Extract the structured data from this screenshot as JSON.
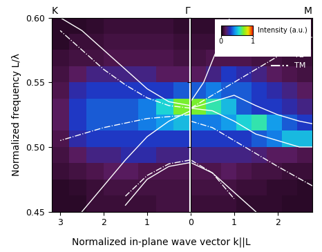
{
  "chart_data": [
    {
      "type": "heatmap",
      "x_label": "Normalized in-plane wave vector k||L",
      "y_label": "Normalized frequency L/λ",
      "top_labels": [
        {
          "value": 3.2,
          "label": "K"
        },
        {
          "value": 0,
          "label": "Γ"
        }
      ],
      "xlim": [
        3.2,
        0
      ],
      "xticks": [
        3,
        2,
        1,
        0
      ],
      "ylim": [
        0.45,
        0.6
      ],
      "yticks": [
        {
          "value": 0.45,
          "label": "0.45"
        },
        {
          "value": 0.5,
          "label": "0.50"
        },
        {
          "value": 0.55,
          "label": "0.55"
        },
        {
          "value": 0.6,
          "label": "0.60"
        }
      ],
      "x_edges": [
        3.2,
        2.8,
        2.4,
        2.0,
        1.6,
        1.2,
        0.8,
        0.4,
        0
      ],
      "y_edges": [
        0.45,
        0.4625,
        0.475,
        0.4875,
        0.5,
        0.5125,
        0.525,
        0.5375,
        0.55,
        0.5625,
        0.575,
        0.5875,
        0.6
      ],
      "cells": [
        [
          0.05,
          0.05,
          0.08,
          0.08,
          0.08,
          0.08,
          0.1,
          0.1
        ],
        [
          0.05,
          0.06,
          0.08,
          0.1,
          0.1,
          0.1,
          0.1,
          0.1
        ],
        [
          0.08,
          0.1,
          0.12,
          0.15,
          0.15,
          0.12,
          0.12,
          0.12
        ],
        [
          0.1,
          0.15,
          0.2,
          0.2,
          0.25,
          0.25,
          0.2,
          0.2
        ],
        [
          0.12,
          0.25,
          0.3,
          0.3,
          0.3,
          0.3,
          0.3,
          0.3
        ],
        [
          0.15,
          0.3,
          0.35,
          0.35,
          0.35,
          0.4,
          0.45,
          0.5
        ],
        [
          0.15,
          0.3,
          0.35,
          0.35,
          0.35,
          0.4,
          0.55,
          0.7
        ],
        [
          0.12,
          0.25,
          0.3,
          0.3,
          0.3,
          0.3,
          0.3,
          0.35
        ],
        [
          0.1,
          0.15,
          0.2,
          0.2,
          0.2,
          0.2,
          0.15,
          0.15
        ],
        [
          0.08,
          0.1,
          0.1,
          0.12,
          0.12,
          0.12,
          0.12,
          0.1
        ],
        [
          0.05,
          0.08,
          0.08,
          0.1,
          0.1,
          0.1,
          0.1,
          0.08
        ],
        [
          0.05,
          0.05,
          0.06,
          0.08,
          0.08,
          0.08,
          0.08,
          0.06
        ]
      ],
      "series": [
        {
          "name": "TE",
          "color": "#ffffff",
          "line_style": "solid",
          "x": [
            0,
            0.5,
            1,
            1.5,
            2,
            2.5,
            3
          ],
          "values": [
            0.532,
            0.535,
            0.545,
            0.56,
            0.575,
            0.59,
            0.6
          ]
        },
        {
          "name": "TE",
          "color": "#ffffff",
          "line_style": "solid",
          "x": [
            0,
            0.5,
            1,
            1.5,
            2,
            2.5
          ],
          "values": [
            0.528,
            0.52,
            0.508,
            0.49,
            0.47,
            0.45
          ]
        },
        {
          "name": "TE",
          "color": "#ffffff",
          "line_style": "solid",
          "x": [
            0,
            0.5,
            1,
            1.5
          ],
          "values": [
            0.488,
            0.485,
            0.475,
            0.455
          ]
        },
        {
          "name": "TM",
          "color": "#ffffff",
          "line_style": "dashdot",
          "x": [
            0,
            0.5,
            1,
            1.5,
            2,
            2.5,
            3
          ],
          "values": [
            0.53,
            0.532,
            0.538,
            0.548,
            0.56,
            0.575,
            0.59
          ]
        },
        {
          "name": "TM",
          "color": "#ffffff",
          "line_style": "dashdot",
          "x": [
            0,
            1,
            2,
            3
          ],
          "values": [
            0.525,
            0.522,
            0.515,
            0.505
          ]
        },
        {
          "name": "TM",
          "color": "#ffffff",
          "line_style": "dashdot",
          "x": [
            0,
            0.5,
            1,
            1.5
          ],
          "values": [
            0.49,
            0.487,
            0.478,
            0.462
          ]
        }
      ]
    },
    {
      "type": "heatmap",
      "top_labels": [
        {
          "value": 2.8,
          "label": "M"
        }
      ],
      "xlim": [
        0,
        2.8
      ],
      "xticks": [
        1,
        2
      ],
      "ylim": [
        0.45,
        0.6
      ],
      "yticks": [
        {
          "value": 0.45,
          "label": "0.45"
        },
        {
          "value": 0.5,
          "label": "0.50"
        },
        {
          "value": 0.55,
          "label": "0.55"
        },
        {
          "value": 0.6,
          "label": "0.60"
        }
      ],
      "tick_labels": "x",
      "legend": "upper right",
      "colorbar": {
        "label": "Intensity (a.u.)",
        "range": [
          0,
          1
        ],
        "ticks": [
          0,
          1
        ]
      },
      "x_edges": [
        0,
        0.35,
        0.7,
        1.05,
        1.4,
        1.75,
        2.1,
        2.45,
        2.8
      ],
      "y_edges": [
        0.45,
        0.4625,
        0.475,
        0.4875,
        0.5,
        0.5125,
        0.525,
        0.5375,
        0.55,
        0.5625,
        0.575,
        0.5875,
        0.6
      ],
      "cells": [
        [
          0.08,
          0.08,
          0.08,
          0.06,
          0.06,
          0.06,
          0.05,
          0.05
        ],
        [
          0.1,
          0.1,
          0.1,
          0.08,
          0.08,
          0.06,
          0.06,
          0.05
        ],
        [
          0.12,
          0.12,
          0.15,
          0.12,
          0.1,
          0.1,
          0.08,
          0.08
        ],
        [
          0.2,
          0.2,
          0.2,
          0.2,
          0.18,
          0.15,
          0.15,
          0.12
        ],
        [
          0.3,
          0.3,
          0.3,
          0.3,
          0.35,
          0.4,
          0.5,
          0.5
        ],
        [
          0.4,
          0.4,
          0.45,
          0.55,
          0.6,
          0.45,
          0.35,
          0.3
        ],
        [
          0.7,
          0.6,
          0.5,
          0.35,
          0.3,
          0.3,
          0.25,
          0.2
        ],
        [
          0.35,
          0.4,
          0.35,
          0.35,
          0.3,
          0.25,
          0.2,
          0.15
        ],
        [
          0.15,
          0.2,
          0.3,
          0.25,
          0.2,
          0.15,
          0.12,
          0.1
        ],
        [
          0.1,
          0.12,
          0.12,
          0.12,
          0.1,
          0.1,
          0.08,
          0.08
        ],
        [
          0.08,
          0.08,
          0.08,
          0.08,
          0.08,
          0.06,
          0.06,
          0.05
        ],
        [
          0.06,
          0.06,
          0.06,
          0.06,
          0.05,
          0.05,
          0.05,
          0.05
        ]
      ],
      "series": [
        {
          "name": "TE",
          "color": "#ffffff",
          "line_style": "solid",
          "x": [
            0,
            0.3,
            0.6,
            0.9
          ],
          "values": [
            0.535,
            0.55,
            0.575,
            0.6
          ]
        },
        {
          "name": "TE",
          "color": "#ffffff",
          "line_style": "solid",
          "x": [
            0,
            0.5,
            1,
            1.5,
            2,
            2.5,
            2.8
          ],
          "values": [
            0.53,
            0.528,
            0.52,
            0.51,
            0.505,
            0.5,
            0.5
          ]
        },
        {
          "name": "TE",
          "color": "#ffffff",
          "line_style": "solid",
          "x": [
            0,
            0.5,
            1,
            1.5,
            2,
            2.5,
            2.8
          ],
          "values": [
            0.53,
            0.535,
            0.54,
            0.532,
            0.525,
            0.52,
            0.518
          ]
        },
        {
          "name": "TE",
          "color": "#ffffff",
          "line_style": "solid",
          "x": [
            0,
            0.5,
            1,
            1.5
          ],
          "values": [
            0.488,
            0.48,
            0.465,
            0.45
          ]
        },
        {
          "name": "TM",
          "color": "#ffffff",
          "line_style": "dashdot",
          "x": [
            0,
            0.5,
            1,
            1.5,
            2,
            2.5,
            2.8
          ],
          "values": [
            0.53,
            0.54,
            0.55,
            0.56,
            0.57,
            0.58,
            0.585
          ]
        },
        {
          "name": "TM",
          "color": "#ffffff",
          "line_style": "dashdot",
          "x": [
            0,
            0.5,
            1,
            1.5,
            2,
            2.8
          ],
          "values": [
            0.52,
            0.515,
            0.505,
            0.495,
            0.485,
            0.47
          ]
        },
        {
          "name": "TM",
          "color": "#ffffff",
          "line_style": "dashdot",
          "x": [
            0,
            0.5,
            1
          ],
          "values": [
            0.49,
            0.48,
            0.46
          ]
        }
      ]
    }
  ]
}
